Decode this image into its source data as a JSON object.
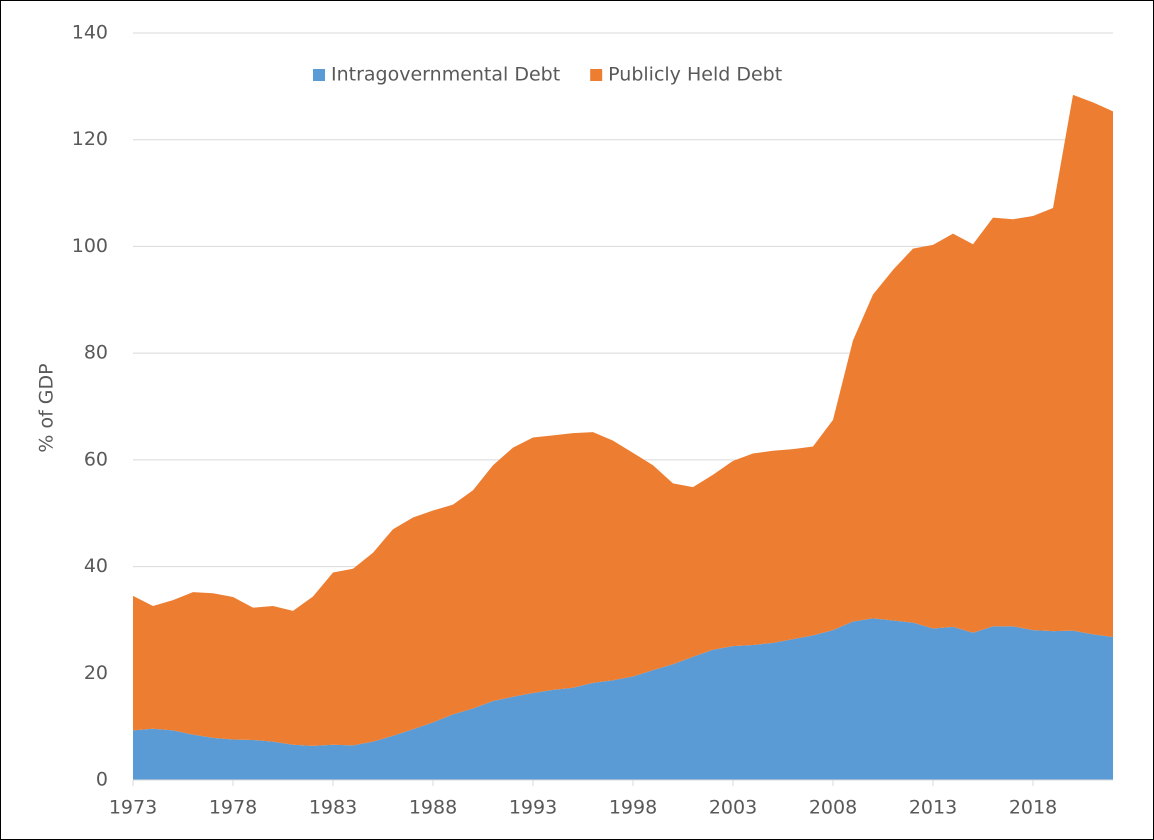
{
  "chart_data": {
    "type": "stacked_area",
    "y_label": "% of GDP",
    "x": [
      1973,
      1974,
      1975,
      1976,
      1977,
      1978,
      1979,
      1980,
      1981,
      1982,
      1983,
      1984,
      1985,
      1986,
      1987,
      1988,
      1989,
      1990,
      1991,
      1992,
      1993,
      1994,
      1995,
      1996,
      1997,
      1998,
      1999,
      2000,
      2001,
      2002,
      2003,
      2004,
      2005,
      2006,
      2007,
      2008,
      2009,
      2010,
      2011,
      2012,
      2013,
      2014,
      2015,
      2016,
      2017,
      2018,
      2019,
      2020,
      2021,
      2022
    ],
    "xlim": [
      1973,
      2022
    ],
    "xticks": [
      1973,
      1978,
      1983,
      1988,
      1993,
      1998,
      2003,
      2008,
      2013,
      2018
    ],
    "ylim": [
      0,
      140
    ],
    "yticks": [
      0,
      20,
      40,
      60,
      80,
      100,
      120,
      140
    ],
    "grid": true,
    "legend": "top",
    "series": [
      {
        "name": "Intragovernmental Debt",
        "color": "#5b9bd5",
        "values": [
          9.3,
          9.6,
          9.3,
          8.5,
          7.9,
          7.6,
          7.5,
          7.2,
          6.6,
          6.4,
          6.6,
          6.5,
          7.2,
          8.3,
          9.5,
          10.8,
          12.3,
          13.4,
          14.8,
          15.6,
          16.3,
          16.9,
          17.3,
          18.2,
          18.7,
          19.4,
          20.6,
          21.7,
          23.1,
          24.4,
          25.1,
          25.3,
          25.7,
          26.4,
          27.1,
          28.1,
          29.7,
          30.3,
          29.9,
          29.5,
          28.4,
          28.7,
          27.6,
          28.8,
          28.8,
          28.1,
          27.9,
          28.0,
          27.3,
          26.8
        ]
      },
      {
        "name": "Publicly Held Debt",
        "color": "#ed7d31",
        "values": [
          25.2,
          23.0,
          24.4,
          26.7,
          27.1,
          26.7,
          24.8,
          25.4,
          25.1,
          28.0,
          32.3,
          33.1,
          35.4,
          38.7,
          39.7,
          39.7,
          39.3,
          40.9,
          44.2,
          46.7,
          47.9,
          47.7,
          47.7,
          47.0,
          44.9,
          41.9,
          38.4,
          33.9,
          31.8,
          32.8,
          34.7,
          35.9,
          36.0,
          35.6,
          35.4,
          39.4,
          52.7,
          60.7,
          65.7,
          70.1,
          71.9,
          73.7,
          72.8,
          76.6,
          76.3,
          77.6,
          79.3,
          100.4,
          99.7,
          98.5
        ]
      }
    ]
  }
}
